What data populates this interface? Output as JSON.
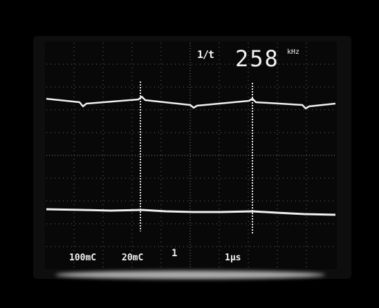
{
  "display": {
    "trigger_label": "1/t",
    "frequency_value": "258",
    "frequency_unit": "kHz",
    "channel1_scale": "100mC",
    "channel2_scale": "20mC",
    "mode_indicator": "1",
    "timebase": "1μs"
  },
  "colors": {
    "background": "#000000",
    "trace": "#f0f0f0",
    "grid": "#6e6e6e"
  }
}
